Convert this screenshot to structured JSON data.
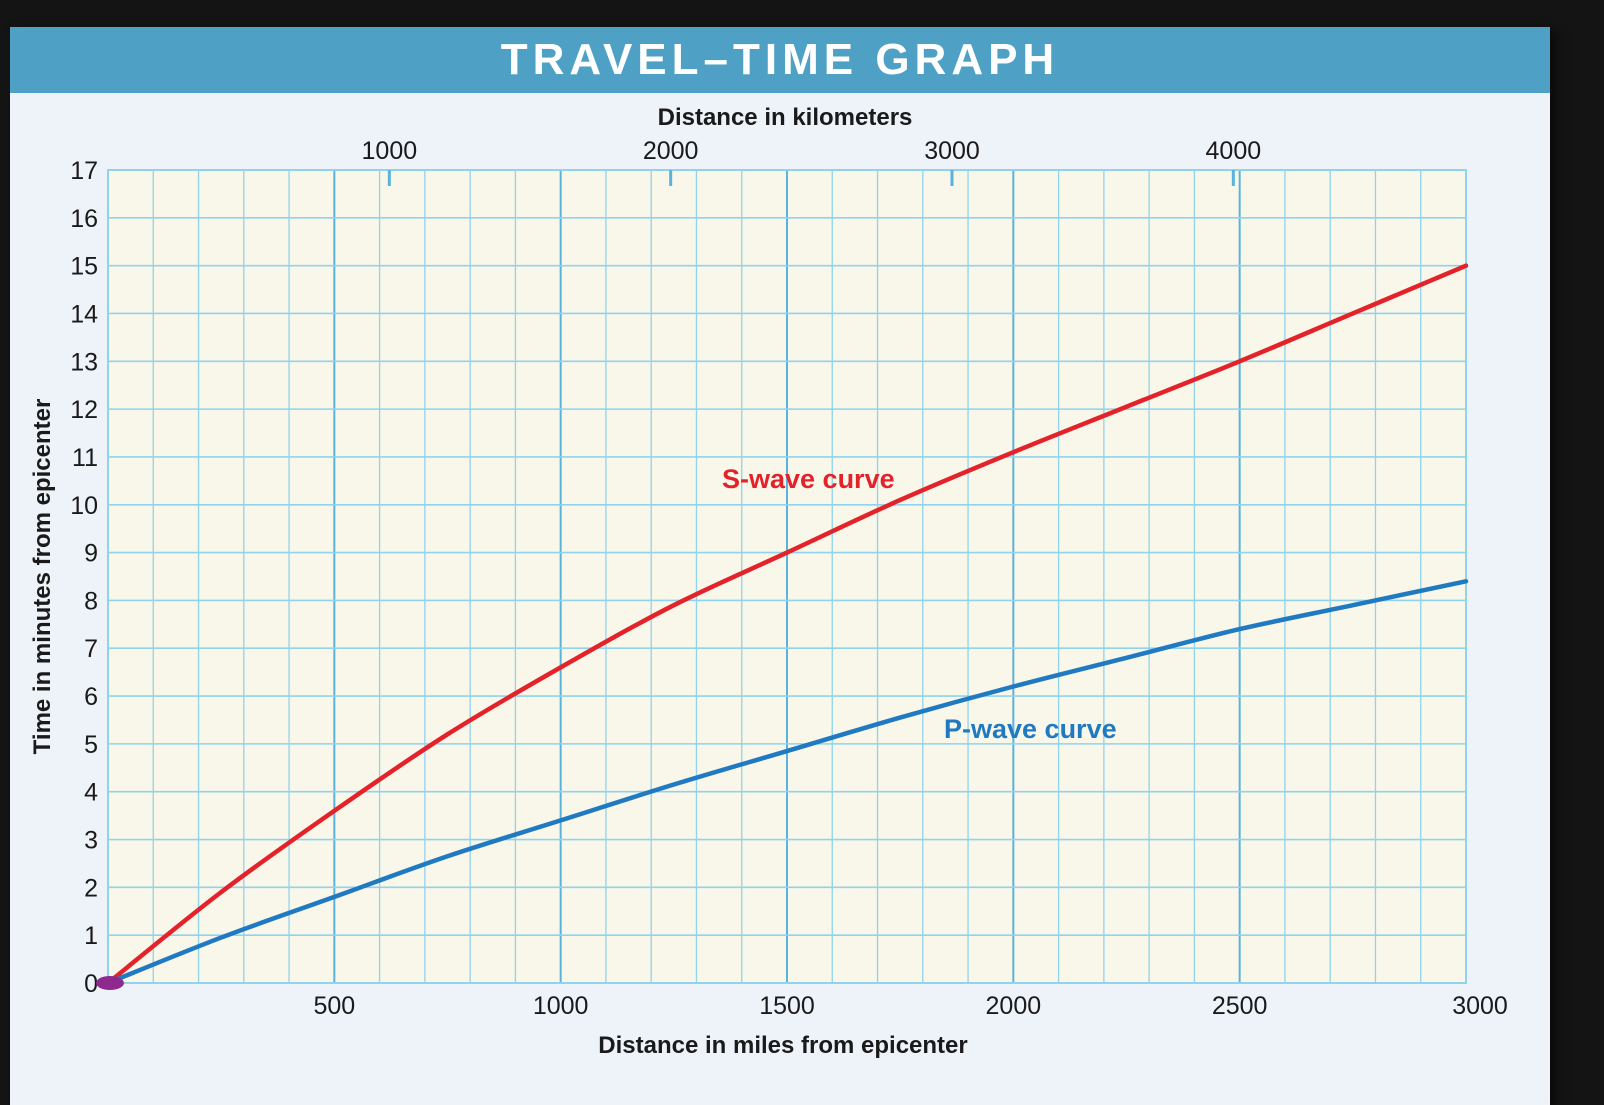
{
  "chart_data": {
    "type": "line",
    "title": "TRAVEL–TIME GRAPH",
    "xlabel": "Distance in miles from epicenter",
    "ylabel": "Time in minutes from epicenter",
    "x2label": "Distance in kilometers",
    "xlim": [
      0,
      3000
    ],
    "ylim": [
      0,
      17
    ],
    "x_ticks": [
      500,
      1000,
      1500,
      2000,
      2500,
      3000
    ],
    "y_ticks": [
      0,
      1,
      2,
      3,
      4,
      5,
      6,
      7,
      8,
      9,
      10,
      11,
      12,
      13,
      14,
      15,
      16,
      17
    ],
    "x2_ticks": [
      1000,
      2000,
      3000,
      4000
    ],
    "km_per_mile": 1.609,
    "grid": true,
    "x_minor_step": 100,
    "x_major_step": 500,
    "y_step": 1,
    "origin_marker_color": "#8e2a8e",
    "grid_minor_color": "#8fd3ec",
    "grid_major_color": "#5ab3dc",
    "plot_bg": "#f9f6ea",
    "series": [
      {
        "name": "S-wave curve",
        "color": "#e3222a",
        "x": [
          0,
          250,
          500,
          750,
          1000,
          1250,
          1500,
          1750,
          2000,
          2250,
          2500,
          2750,
          3000
        ],
        "y": [
          0,
          1.9,
          3.6,
          5.2,
          6.6,
          7.9,
          9.0,
          10.1,
          11.1,
          12.05,
          13.0,
          14.0,
          15.0
        ]
      },
      {
        "name": "P-wave curve",
        "color": "#1f7ac2",
        "x": [
          0,
          250,
          500,
          750,
          1000,
          1250,
          1500,
          1750,
          2000,
          2250,
          2500,
          2750,
          3000
        ],
        "y": [
          0,
          0.95,
          1.8,
          2.65,
          3.4,
          4.15,
          4.85,
          5.55,
          6.2,
          6.8,
          7.4,
          7.9,
          8.4
        ]
      }
    ]
  }
}
